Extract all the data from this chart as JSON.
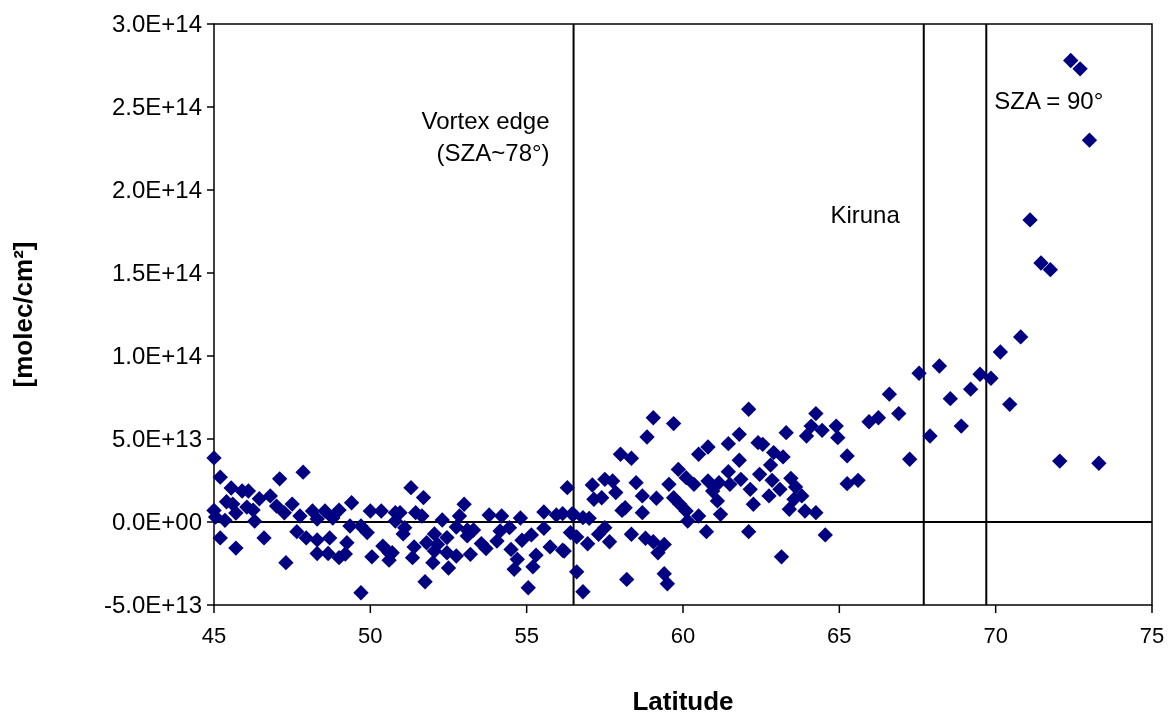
{
  "chart_data": {
    "type": "scatter",
    "xlabel": "Latitude",
    "ylabel": "[molec/cm²]",
    "marker": "diamond",
    "grid": false,
    "xlim": [
      45,
      75
    ],
    "xticks": [
      45,
      50,
      55,
      60,
      65,
      70,
      75
    ],
    "ylim": [
      -50000000000000.0,
      300000000000000.0
    ],
    "yticks": [
      {
        "value": -50000000000000.0,
        "label": "-5.0E+13"
      },
      {
        "value": 0,
        "label": "0.0E+00"
      },
      {
        "value": 50000000000000.0,
        "label": "5.0E+13"
      },
      {
        "value": 100000000000000.0,
        "label": "1.0E+14"
      },
      {
        "value": 150000000000000.0,
        "label": "1.5E+14"
      },
      {
        "value": 200000000000000.0,
        "label": "2.0E+14"
      },
      {
        "value": 250000000000000.0,
        "label": "2.5E+14"
      },
      {
        "value": 300000000000000.0,
        "label": "3.0E+14"
      }
    ],
    "ref_lines": [
      {
        "axis": "y",
        "value": 0,
        "color": "#000000"
      },
      {
        "axis": "x",
        "value": 56.5,
        "color": "#000000"
      },
      {
        "axis": "x",
        "value": 67.7,
        "color": "#000000"
      },
      {
        "axis": "x",
        "value": 69.7,
        "color": "#000000"
      }
    ],
    "annotations": [
      {
        "text": "Vortex edge\n(SZA~78°)",
        "x": 56.5,
        "y": 237000000000000.0
      },
      {
        "text": "Kiruna",
        "x": 67.7,
        "y": 180000000000000.0
      },
      {
        "text": "SZA = 90°",
        "x": 69.7,
        "y": 249000000000000.0
      }
    ],
    "series": [
      {
        "color": "#000080",
        "x": [
          45.0,
          45.2,
          45.55,
          45.9,
          46.1,
          47.1,
          47.85,
          46.45,
          46.8,
          45.4,
          45.6,
          46.05,
          46.25,
          45.7,
          45.0,
          45.05,
          45.35,
          46.3,
          47.0,
          47.5,
          47.25,
          47.75,
          48.15,
          48.55,
          49.0,
          49.4,
          50.0,
          50.35,
          50.8,
          48.3,
          48.8,
          45.2,
          45.7,
          46.6,
          47.65,
          47.95,
          48.3,
          48.7,
          48.3,
          48.65,
          47.3,
          49.25,
          49.0,
          49.2,
          49.35,
          49.7,
          49.9,
          50.4,
          50.05,
          50.6,
          50.7,
          49.7,
          50.8,
          51.3,
          51.7,
          50.95,
          51.45,
          51.65,
          53.0,
          52.85,
          53.8,
          54.2,
          54.8,
          55.55,
          55.95,
          56.15,
          56.45,
          56.3,
          51.1,
          51.05,
          52.3,
          52.75,
          53.1,
          53.3,
          53.1,
          52.05,
          52.45,
          51.8,
          52.15,
          51.4,
          50.6,
          52.05,
          52.45,
          52.75,
          51.35,
          52.0,
          52.5,
          53.2,
          53.55,
          53.7,
          54.15,
          54.05,
          54.45,
          54.5,
          54.7,
          54.6,
          54.85,
          55.15,
          55.3,
          55.2,
          55.55,
          55.75,
          56.15,
          55.05,
          51.75,
          56.5,
          56.8,
          57.0,
          57.1,
          57.5,
          57.75,
          57.85,
          57.15,
          57.4,
          58.0,
          58.35,
          58.85,
          59.05,
          59.7,
          58.5,
          58.7,
          58.05,
          58.15,
          58.7,
          59.15,
          59.55,
          59.85,
          60.1,
          59.7,
          59.9,
          60.1,
          60.15,
          60.35,
          60.5,
          60.5,
          60.8,
          60.8,
          60.95,
          61.1,
          61.2,
          61.45,
          61.15,
          61.5,
          61.85,
          62.15,
          62.25,
          61.8,
          61.45,
          61.8,
          62.1,
          62.4,
          62.1,
          60.75,
          58.35,
          57.5,
          57.3,
          57.65,
          56.95,
          56.6,
          56.4,
          56.2,
          58.8,
          59.05,
          59.4,
          59.2,
          56.6,
          58.2,
          59.4,
          59.5,
          56.8,
          64.25,
          66.6,
          66.9,
          65.95,
          66.25,
          67.9,
          67.25,
          64.1,
          64.45,
          64.9,
          64.95,
          63.95,
          63.3,
          62.55,
          62.9,
          63.2,
          62.8,
          65.25,
          62.45,
          62.85,
          63.45,
          63.1,
          63.6,
          62.75,
          65.25,
          65.6,
          63.8,
          63.55,
          63.4,
          63.9,
          64.25,
          64.55,
          63.15,
          72.4,
          72.7,
          73.0,
          71.1,
          71.45,
          71.75,
          70.8,
          70.15,
          69.5,
          69.85,
          70.45,
          67.55,
          68.2,
          68.55,
          69.2,
          68.9,
          72.05,
          73.3
        ],
        "values": [
          38600000000000.0,
          27000000000000.0,
          20500000000000.0,
          18700000000000.0,
          18700000000000.0,
          26000000000000.0,
          30000000000000.0,
          14000000000000.0,
          15700000000000.0,
          12200000000000.0,
          10800000000000.0,
          9000000000000.0,
          7200000000000.0,
          5400000000000.0,
          7000000000000.0,
          3000000000000.0,
          1000000000000.0,
          500000000000.0,
          9600000000000.0,
          10800000000000.0,
          5500000000000.0,
          3600000000000.0,
          6600000000000.0,
          6600000000000.0,
          7200000000000.0,
          11600000000000.0,
          6600000000000.0,
          6600000000000.0,
          5600000000000.0,
          1800000000000.0,
          2400000000000.0,
          -9600000000000.0,
          -15700000000000.0,
          -9600000000000.0,
          -5800000000000.0,
          -9600000000000.0,
          -10800000000000.0,
          -9600000000000.0,
          -19000000000000.0,
          -19000000000000.0,
          -24500000000000.0,
          -12500000000000.0,
          -21500000000000.0,
          -19300000000000.0,
          -2400000000000.0,
          -2400000000000.0,
          -6400000000000.0,
          -14500000000000.0,
          -21000000000000.0,
          -23000000000000.0,
          -18500000000000.0,
          -42600000000000.0,
          600000000000.0,
          20700000000000.0,
          14700000000000.0,
          5600000000000.0,
          5600000000000.0,
          3600000000000.0,
          10700000000000.0,
          3600000000000.0,
          4200000000000.0,
          3600000000000.0,
          2400000000000.0,
          6000000000000.0,
          4200000000000.0,
          5000000000000.0,
          4800000000000.0,
          20700000000000.0,
          -3400000000000.0,
          -7200000000000.0,
          1200000000000.0,
          -3000000000000.0,
          -4800000000000.0,
          -4800000000000.0,
          -8400000000000.0,
          -7200000000000.0,
          -9400000000000.0,
          -12500000000000.0,
          -13500000000000.0,
          -15000000000000.0,
          -18500000000000.0,
          -17500000000000.0,
          -18500000000000.0,
          -20500000000000.0,
          -21500000000000.0,
          -24500000000000.0,
          -27700000000000.0,
          -19500000000000.0,
          -13000000000000.0,
          -16000000000000.0,
          -5400000000000.0,
          -11500000000000.0,
          -3400000000000.0,
          -16500000000000.0,
          -22500000000000.0,
          -28500000000000.0,
          -11000000000000.0,
          -7800000000000.0,
          -20000000000000.0,
          -27000000000000.0,
          -3800000000000.0,
          -15000000000000.0,
          -17000000000000.0,
          -39600000000000.0,
          -36000000000000.0,
          4600000000000.0,
          2600000000000.0,
          2200000000000.0,
          22300000000000.0,
          25700000000000.0,
          24700000000000.0,
          17700000000000.0,
          13700000000000.0,
          14600000000000.0,
          40800000000000.0,
          38400000000000.0,
          51200000000000.0,
          62800000000000.0,
          59300000000000.0,
          23700000000000.0,
          15700000000000.0,
          7000000000000.0,
          8600000000000.0,
          5600000000000.0,
          14300000000000.0,
          22700000000000.0,
          31700000000000.0,
          26700000000000.0,
          14600000000000.0,
          10700000000000.0,
          6600000000000.0,
          600000000000.0,
          22700000000000.0,
          3600000000000.0,
          40800000000000.0,
          45200000000000.0,
          24700000000000.0,
          18700000000000.0,
          12700000000000.0,
          4600000000000.0,
          30300000000000.0,
          23700000000000.0,
          22700000000000.0,
          25700000000000.0,
          19700000000000.0,
          10700000000000.0,
          37200000000000.0,
          47200000000000.0,
          52800000000000.0,
          67900000000000.0,
          47800000000000.0,
          -5800000000000.0,
          -5800000000000.0,
          -7400000000000.0,
          -3400000000000.0,
          -7400000000000.0,
          -11900000000000.0,
          -13100000000000.0,
          -9000000000000.0,
          -6400000000000.0,
          -17500000000000.0,
          -9800000000000.0,
          -11900000000000.0,
          -13500000000000.0,
          -18500000000000.0,
          -30000000000000.0,
          -34600000000000.0,
          -31200000000000.0,
          -37200000000000.0,
          -42000000000000.0,
          65300000000000.0,
          77000000000000.0,
          65300000000000.0,
          60400000000000.0,
          62800000000000.0,
          51800000000000.0,
          37800000000000.0,
          57800000000000.0,
          55200000000000.0,
          57800000000000.0,
          50800000000000.0,
          51800000000000.0,
          53800000000000.0,
          46800000000000.0,
          41800000000000.0,
          39200000000000.0,
          34300000000000.0,
          39800000000000.0,
          28700000000000.0,
          25100000000000.0,
          26300000000000.0,
          19700000000000.0,
          21100000000000.0,
          15700000000000.0,
          23100000000000.0,
          25100000000000.0,
          15700000000000.0,
          13700000000000.0,
          7700000000000.0,
          6600000000000.0,
          5600000000000.0,
          -7800000000000.0,
          -21000000000000.0,
          278000000000000.0,
          273000000000000.0,
          230000000000000.0,
          182000000000000.0,
          156000000000000.0,
          152000000000000.0,
          111500000000000.0,
          102400000000000.0,
          89000000000000.0,
          86600000000000.0,
          70900000000000.0,
          89600000000000.0,
          94000000000000.0,
          74300000000000.0,
          80000000000000.0,
          57800000000000.0,
          36700000000000.0,
          35400000000000.0
        ]
      }
    ]
  }
}
